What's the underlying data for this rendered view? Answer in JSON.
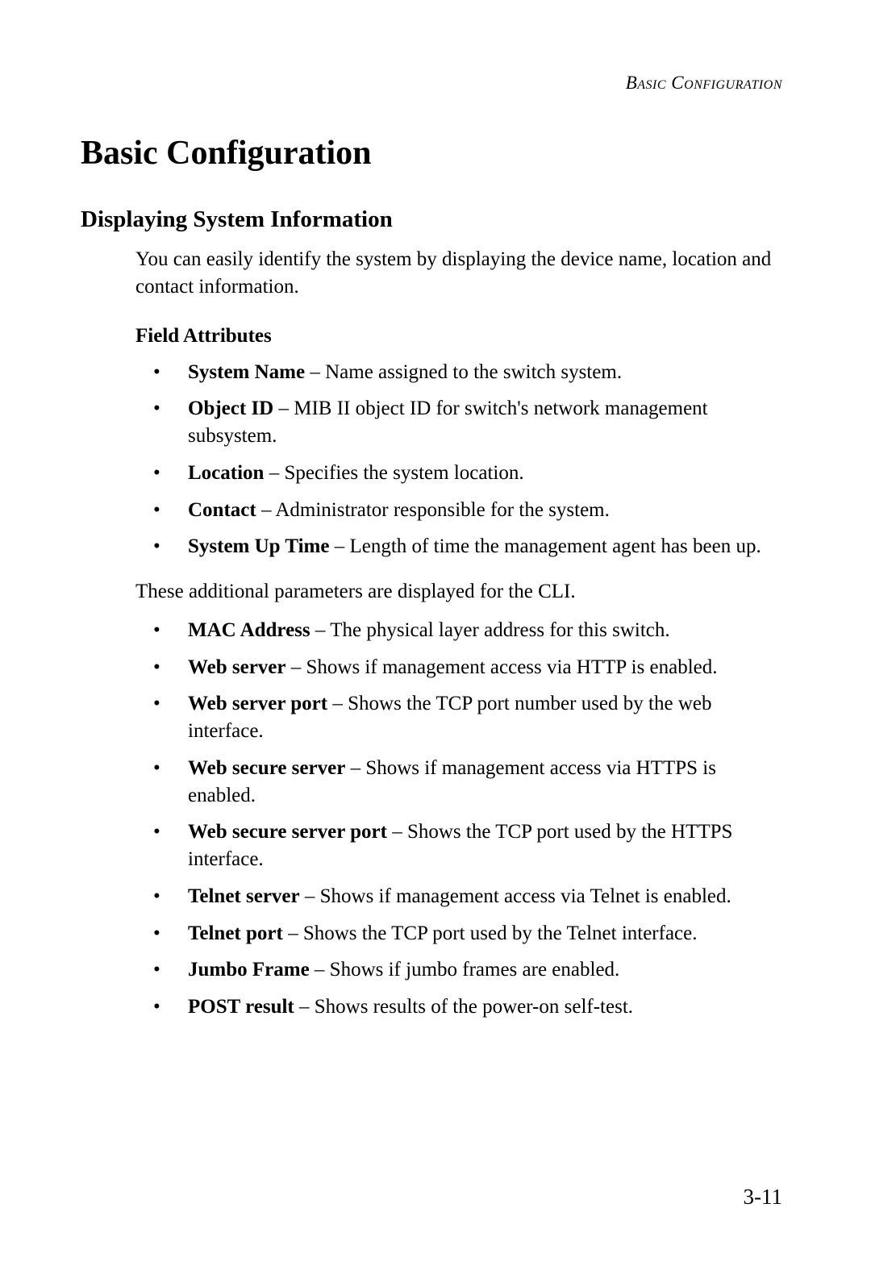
{
  "header": {
    "label": "Basic Configuration"
  },
  "title": "Basic Configuration",
  "subtitle": "Displaying System Information",
  "intro": "You can easily identify the system by displaying the device name, location and contact information.",
  "section1": {
    "heading": "Field Attributes",
    "items": [
      {
        "term": "System Name",
        "desc": "Name assigned to the switch system."
      },
      {
        "term": "Object ID",
        "desc": "MIB II object ID for switch's network management subsystem."
      },
      {
        "term": "Location",
        "desc": "Specifies the system location."
      },
      {
        "term": "Contact",
        "desc": "Administrator responsible for the system."
      },
      {
        "term": "System Up Time",
        "desc": "Length of time the management agent has been up."
      }
    ]
  },
  "middle": "These additional parameters are displayed for the CLI.",
  "section2": {
    "items": [
      {
        "term": "MAC Address",
        "desc": "The physical layer address for this switch."
      },
      {
        "term": "Web server",
        "desc": "Shows if management access via HTTP is enabled."
      },
      {
        "term": "Web server port",
        "desc": "Shows the TCP port number used by the web interface."
      },
      {
        "term": "Web secure server",
        "desc": "Shows if management access via HTTPS is enabled."
      },
      {
        "term": "Web secure server port",
        "desc": "Shows the TCP port used by the HTTPS interface."
      },
      {
        "term": "Telnet server",
        "desc": "Shows if management access via Telnet is enabled."
      },
      {
        "term": "Telnet port",
        "desc": "Shows the TCP port used by the Telnet interface."
      },
      {
        "term": "Jumbo Frame",
        "desc": "Shows if jumbo frames are enabled."
      },
      {
        "term": "POST result",
        "desc": "Shows results of the power-on self-test."
      }
    ]
  },
  "pageNumber": "3-11"
}
